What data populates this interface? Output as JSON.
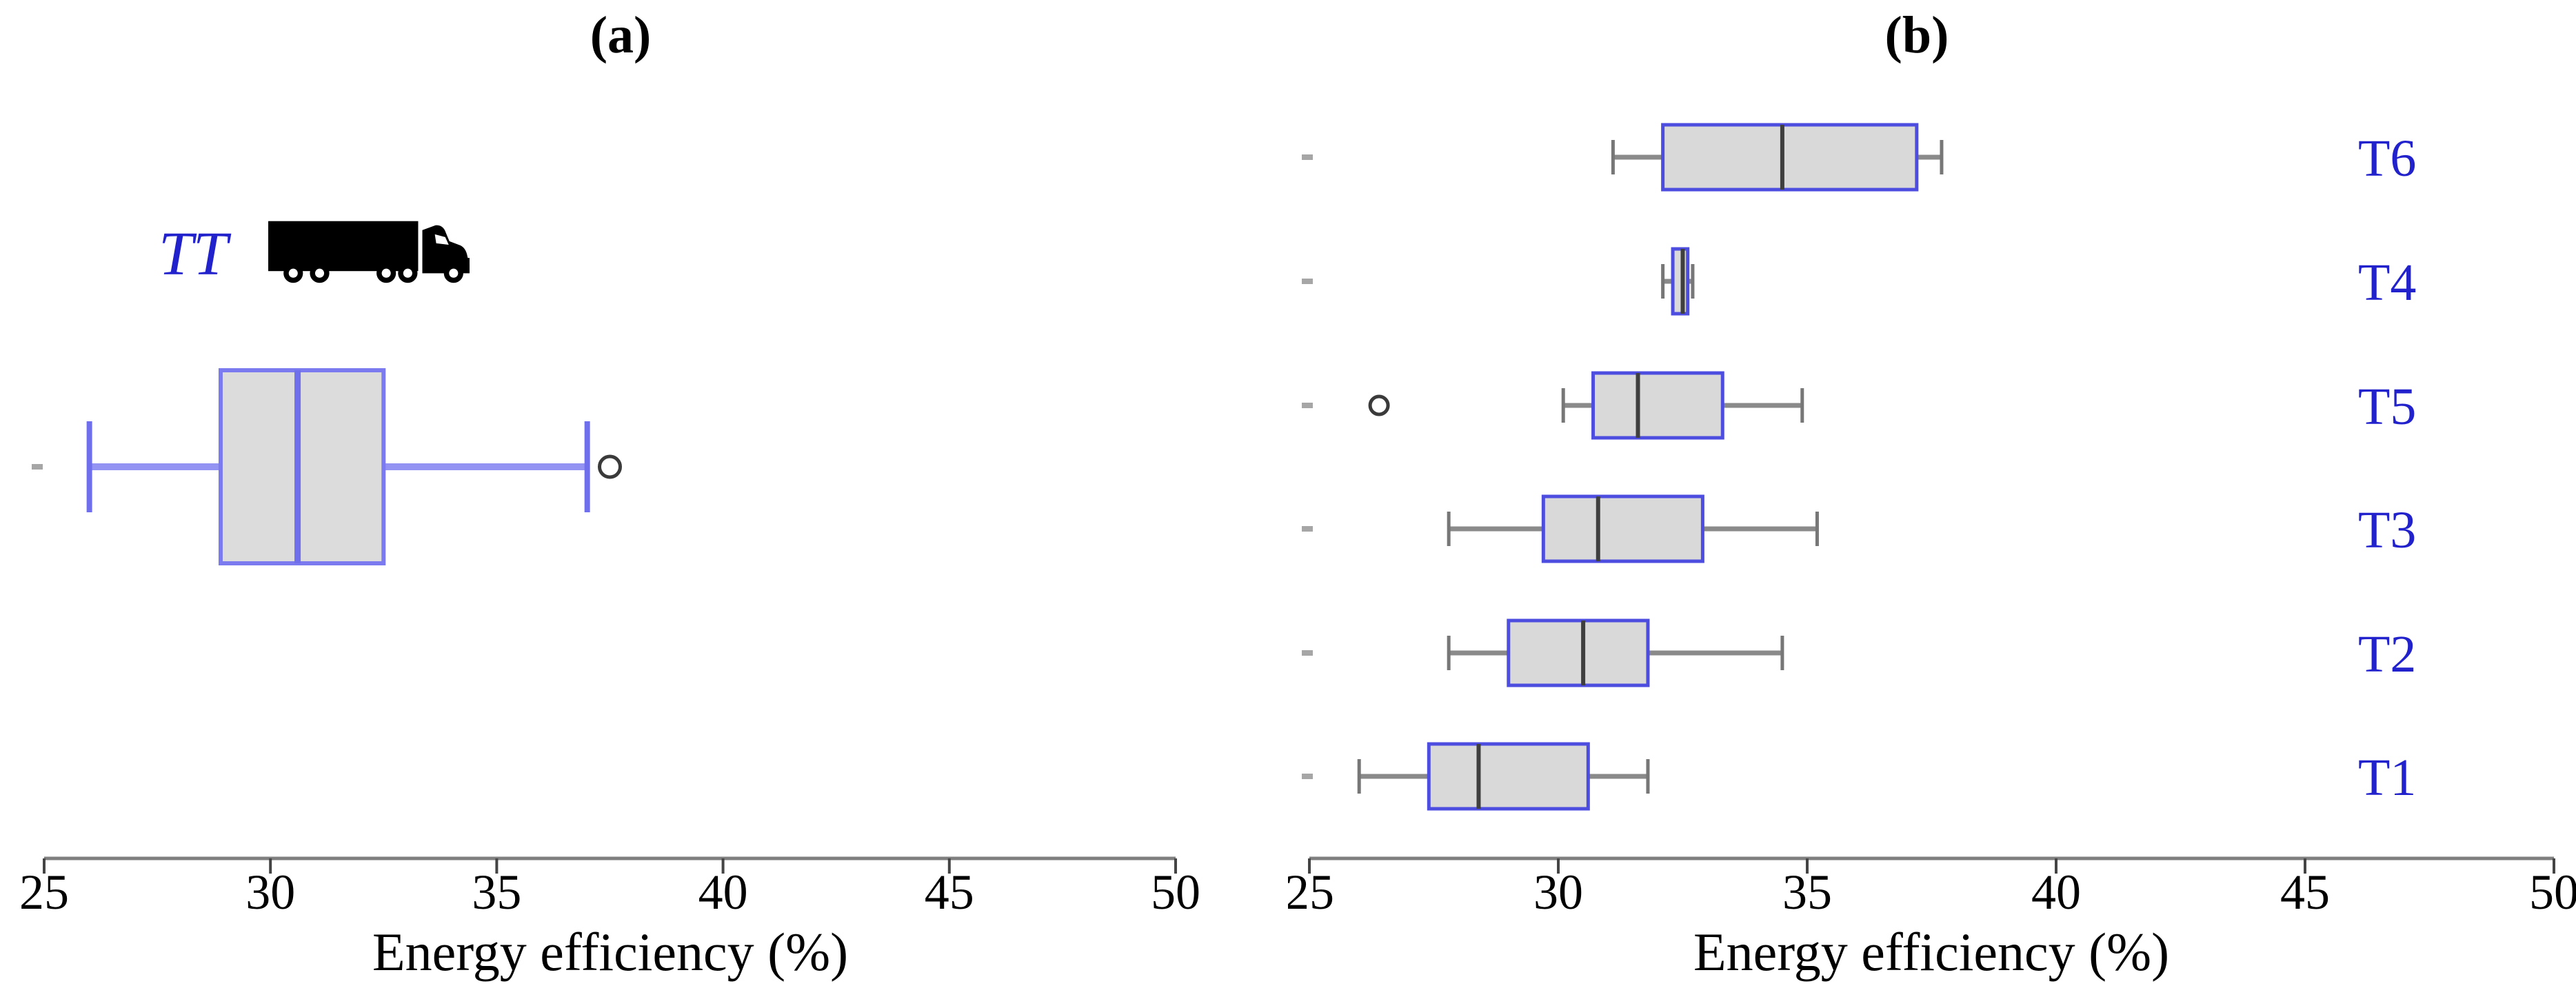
{
  "figure": {
    "description": "Box plots of energy efficiency",
    "panel_a_title": "(a)",
    "panel_b_title": "(b)"
  },
  "chart_data": [
    {
      "id": "a",
      "type": "boxplot",
      "orientation": "horizontal",
      "title": "(a)",
      "xlabel": "Energy efficiency (%)",
      "xlim": [
        25,
        50
      ],
      "xticks": [
        25,
        30,
        35,
        40,
        45,
        50
      ],
      "grid": false,
      "series": [
        {
          "name": "TT",
          "whisker_low": 26.0,
          "q1": 28.9,
          "median": 30.6,
          "q3": 32.5,
          "whisker_high": 37.0,
          "outliers": [
            37.5
          ]
        }
      ],
      "style": {
        "box_border": "#7b7bef",
        "median": "#6f6fec",
        "whisker": "#9393f3",
        "cap": "#6f6fec",
        "box_fill": "#dcdcdc",
        "outlier_stroke": "#3a3a3a",
        "label_color": "#2222cc",
        "axis_color": "#7f7f7f",
        "tick_color": "#444444"
      }
    },
    {
      "id": "b",
      "type": "boxplot",
      "orientation": "horizontal",
      "title": "(b)",
      "xlabel": "Energy efficiency (%)",
      "xlim": [
        25,
        50
      ],
      "xticks": [
        25,
        30,
        35,
        40,
        45,
        50
      ],
      "grid": false,
      "series": [
        {
          "name": "T6",
          "whisker_low": 31.1,
          "q1": 32.1,
          "median": 34.5,
          "q3": 37.2,
          "whisker_high": 37.7,
          "outliers": []
        },
        {
          "name": "T4",
          "whisker_low": 32.1,
          "q1": 32.3,
          "median": 32.5,
          "q3": 32.6,
          "whisker_high": 32.7,
          "outliers": []
        },
        {
          "name": "T5",
          "whisker_low": 30.1,
          "q1": 30.7,
          "median": 31.6,
          "q3": 33.3,
          "whisker_high": 34.9,
          "outliers": [
            26.4
          ]
        },
        {
          "name": "T3",
          "whisker_low": 27.8,
          "q1": 29.7,
          "median": 30.8,
          "q3": 32.9,
          "whisker_high": 35.2,
          "outliers": []
        },
        {
          "name": "T2",
          "whisker_low": 27.8,
          "q1": 29.0,
          "median": 30.5,
          "q3": 31.8,
          "whisker_high": 34.5,
          "outliers": []
        },
        {
          "name": "T1",
          "whisker_low": 26.0,
          "q1": 27.4,
          "median": 28.4,
          "q3": 30.6,
          "whisker_high": 31.8,
          "outliers": []
        }
      ],
      "style": {
        "box_border": "#4d4de0",
        "median": "#3f3f3f",
        "whisker": "#8a8a8a",
        "cap": "#777777",
        "box_fill": "#d9d9d9",
        "outlier_stroke": "#3a3a3a",
        "label_color": "#2222cc",
        "axis_color": "#7f7f7f",
        "tick_color": "#444444"
      }
    }
  ]
}
